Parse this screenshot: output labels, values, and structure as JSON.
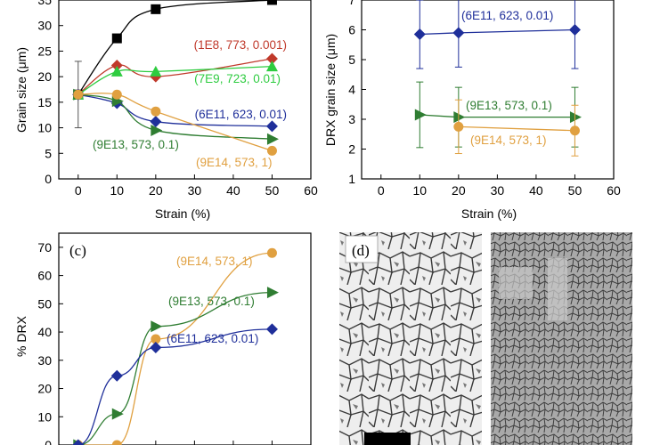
{
  "chart_data": [
    {
      "type": "line",
      "ylabel": "Grain size (μm)",
      "xlabel": "Strain (%)",
      "xlim": [
        -5,
        60
      ],
      "ylim": [
        0,
        35
      ],
      "xticks": [
        0,
        10,
        20,
        30,
        40,
        50,
        60
      ],
      "yticks": [
        0,
        5,
        10,
        15,
        20,
        25,
        30,
        35
      ],
      "series": [
        {
          "name": "",
          "color": "#000000",
          "marker": "square",
          "x": [
            0,
            10,
            20,
            50
          ],
          "y": [
            16.5,
            27.5,
            33.2,
            35.0
          ]
        },
        {
          "name": "(1E8, 773, 0.001)",
          "color": "#c0392b",
          "marker": "diamond",
          "x": [
            0,
            10,
            20,
            50
          ],
          "y": [
            16.5,
            22.2,
            20.0,
            23.5
          ]
        },
        {
          "name": "(7E9, 723, 0.01)",
          "color": "#2ecc40",
          "marker": "triangle-up",
          "x": [
            0,
            10,
            20,
            50
          ],
          "y": [
            16.5,
            21.0,
            21.0,
            22.0
          ]
        },
        {
          "name": "(6E11, 623, 0.01)",
          "color": "#1f2f9a",
          "marker": "diamond",
          "x": [
            0,
            10,
            20,
            50
          ],
          "y": [
            16.5,
            14.8,
            11.2,
            10.3
          ]
        },
        {
          "name": "(9E13, 573, 0.1)",
          "color": "#2f7d32",
          "marker": "triangle-right",
          "x": [
            0,
            10,
            20,
            50
          ],
          "y": [
            16.5,
            15.2,
            9.5,
            7.8
          ]
        },
        {
          "name": "(9E14, 573, 1)",
          "color": "#e0a040",
          "marker": "circle",
          "x": [
            0,
            10,
            20,
            50
          ],
          "y": [
            16.5,
            16.5,
            13.2,
            5.5
          ]
        }
      ],
      "errorbar": {
        "x": 0,
        "y": 16.5,
        "low": 10.0,
        "high": 23.0
      }
    },
    {
      "type": "line",
      "ylabel": "DRX grain size (μm)",
      "xlabel": "Strain (%)",
      "xlim": [
        -5,
        60
      ],
      "ylim": [
        1,
        7
      ],
      "xticks": [
        0,
        10,
        20,
        30,
        40,
        50,
        60
      ],
      "yticks": [
        1,
        2,
        3,
        4,
        5,
        6,
        7
      ],
      "series": [
        {
          "name": "(6E11, 623, 0.01)",
          "color": "#1f2f9a",
          "marker": "diamond",
          "x": [
            10,
            20,
            50
          ],
          "y": [
            5.85,
            5.9,
            6.0
          ],
          "err": [
            1.15,
            1.15,
            1.3
          ]
        },
        {
          "name": "(9E13, 573, 0.1)",
          "color": "#2f7d32",
          "marker": "triangle-right",
          "x": [
            10,
            20,
            50
          ],
          "y": [
            3.15,
            3.07,
            3.07
          ],
          "err": [
            1.1,
            1.0,
            1.0
          ]
        },
        {
          "name": "(9E14, 573, 1)",
          "color": "#e0a040",
          "marker": "circle",
          "x": [
            20,
            50
          ],
          "y": [
            2.75,
            2.62
          ],
          "err": [
            0.9,
            0.85
          ]
        }
      ]
    },
    {
      "type": "line",
      "panel_label": "(c)",
      "ylabel": "% DRX",
      "xlabel": "",
      "xlim": [
        -5,
        60
      ],
      "ylim": [
        0,
        75
      ],
      "yticks": [
        0,
        10,
        20,
        30,
        40,
        50,
        60,
        70
      ],
      "series": [
        {
          "name": "(9E14, 573, 1)",
          "color": "#e0a040",
          "marker": "circle",
          "x": [
            0,
            10,
            20,
            50
          ],
          "y": [
            0,
            0,
            37.5,
            68
          ]
        },
        {
          "name": "(9E13, 573, 0.1)",
          "color": "#2f7d32",
          "marker": "triangle-right",
          "x": [
            0,
            10,
            20,
            50
          ],
          "y": [
            0,
            11,
            42,
            54
          ]
        },
        {
          "name": "(6E11, 623, 0.01)",
          "color": "#1f2f9a",
          "marker": "diamond",
          "x": [
            0,
            10,
            20,
            50
          ],
          "y": [
            0,
            24.5,
            34.5,
            41
          ]
        }
      ]
    }
  ],
  "panel_d": {
    "label": "(d)"
  }
}
